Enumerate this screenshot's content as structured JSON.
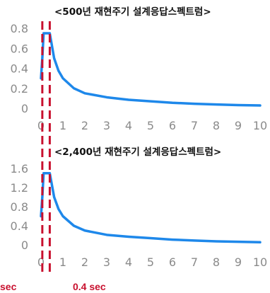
{
  "chart_data": [
    {
      "type": "line",
      "title": "<500년 재현주기 설계응답스펙트럼>",
      "xlim": [
        0,
        10
      ],
      "ylim": [
        0,
        0.8
      ],
      "x_ticks": [
        "0",
        "1",
        "2",
        "3",
        "4",
        "5",
        "6",
        "7",
        "8",
        "9",
        "10"
      ],
      "y_ticks": [
        "0",
        "0.2",
        "0.4",
        "0.6",
        "0.8"
      ],
      "grid": false,
      "series": [
        {
          "color": "#1e88ea",
          "x": [
            0,
            0.06,
            0.12,
            0.3,
            0.4,
            0.6,
            0.8,
            1.0,
            1.5,
            2.0,
            3.0,
            4.0,
            5.0,
            6.0,
            7.0,
            8.0,
            9.0,
            10.0
          ],
          "y": [
            0.3,
            0.5,
            0.75,
            0.75,
            0.75,
            0.5,
            0.375,
            0.3,
            0.2,
            0.15,
            0.11,
            0.085,
            0.07,
            0.055,
            0.045,
            0.038,
            0.032,
            0.028
          ]
        }
      ]
    },
    {
      "type": "line",
      "title": "<2,400년 재현주기 설계응답스펙트럼>",
      "xlim": [
        0,
        10
      ],
      "ylim": [
        0,
        1.6
      ],
      "x_ticks": [
        "0",
        "1",
        "2",
        "3",
        "4",
        "5",
        "6",
        "7",
        "8",
        "9",
        "10"
      ],
      "y_ticks": [
        "0",
        "0.4",
        "0.8",
        "1.2",
        "1.6"
      ],
      "grid": false,
      "series": [
        {
          "color": "#1e88ea",
          "x": [
            0,
            0.06,
            0.12,
            0.3,
            0.4,
            0.6,
            0.8,
            1.0,
            1.5,
            2.0,
            3.0,
            4.0,
            5.0,
            6.0,
            7.0,
            8.0,
            9.0,
            10.0
          ],
          "y": [
            0.6,
            1.0,
            1.5,
            1.5,
            1.5,
            1.0,
            0.75,
            0.6,
            0.4,
            0.3,
            0.21,
            0.17,
            0.14,
            0.11,
            0.09,
            0.075,
            0.065,
            0.055
          ]
        }
      ]
    }
  ],
  "annotations": {
    "left_label": "sec",
    "right_label": "0.4 sec",
    "marker_x": [
      0.06,
      0.4
    ],
    "marker_color": "#c8102e"
  }
}
